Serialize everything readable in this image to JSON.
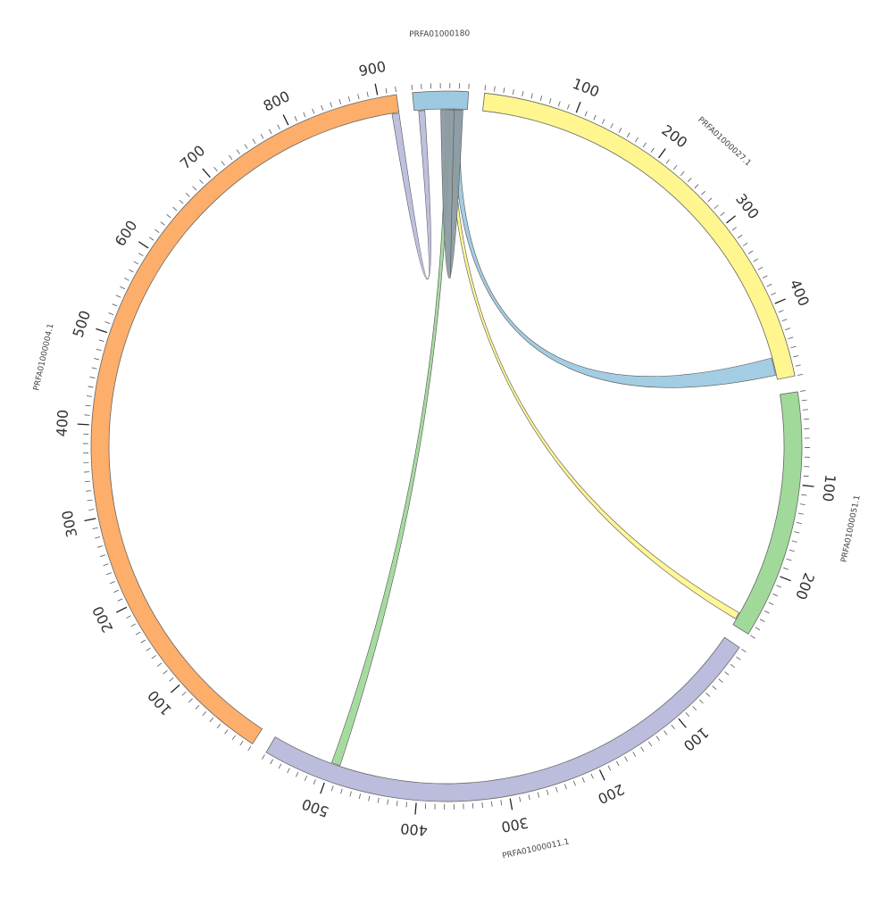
{
  "chart_data": {
    "type": "chord",
    "segments": [
      {
        "id": "seg-prfa01000180",
        "name": "PRFA01000180",
        "length": 60,
        "color": "#9ecae1"
      },
      {
        "id": "seg-prfa01000027",
        "name": "PRFA01000027.1",
        "length": 480,
        "color": "#fff68f"
      },
      {
        "id": "seg-prfa01000051",
        "name": "PRFA01000051.1",
        "length": 270,
        "color": "#a1d99b"
      },
      {
        "id": "seg-prfa01000011",
        "name": "PRFA01000011.1",
        "length": 570,
        "color": "#bcbddc"
      },
      {
        "id": "seg-prfa01000004",
        "name": "PRFA01000004.1",
        "length": 920,
        "color": "#fdae6b"
      }
    ],
    "links": [
      {
        "source": "PRFA01000180",
        "source_range": [
          5,
          12
        ],
        "target": "PRFA01000004.1",
        "target_range": [
          912,
          920
        ],
        "color": "#bcbddc"
      },
      {
        "source": "PRFA01000180",
        "source_range": [
          35,
          40
        ],
        "target": "PRFA01000011.1",
        "target_range": [
          490,
          500
        ],
        "color": "#a1d99b"
      },
      {
        "source": "PRFA01000180",
        "source_range": [
          40,
          45
        ],
        "target": "PRFA01000051.1",
        "target_range": [
          255,
          263
        ],
        "color": "#fff68f"
      },
      {
        "source": "PRFA01000180",
        "source_range": [
          45,
          52
        ],
        "target": "PRFA01000027.1",
        "target_range": [
          455,
          475
        ],
        "color": "#9ecae1"
      },
      {
        "source": "PRFA01000180",
        "source_range": [
          30,
          45
        ],
        "target": "PRFA01000180",
        "target_range": [
          45,
          55
        ],
        "color": "#8c9ba3"
      }
    ],
    "tick_labels": [
      "100",
      "200",
      "300",
      "400",
      "500",
      "600",
      "700",
      "800",
      "900"
    ]
  }
}
